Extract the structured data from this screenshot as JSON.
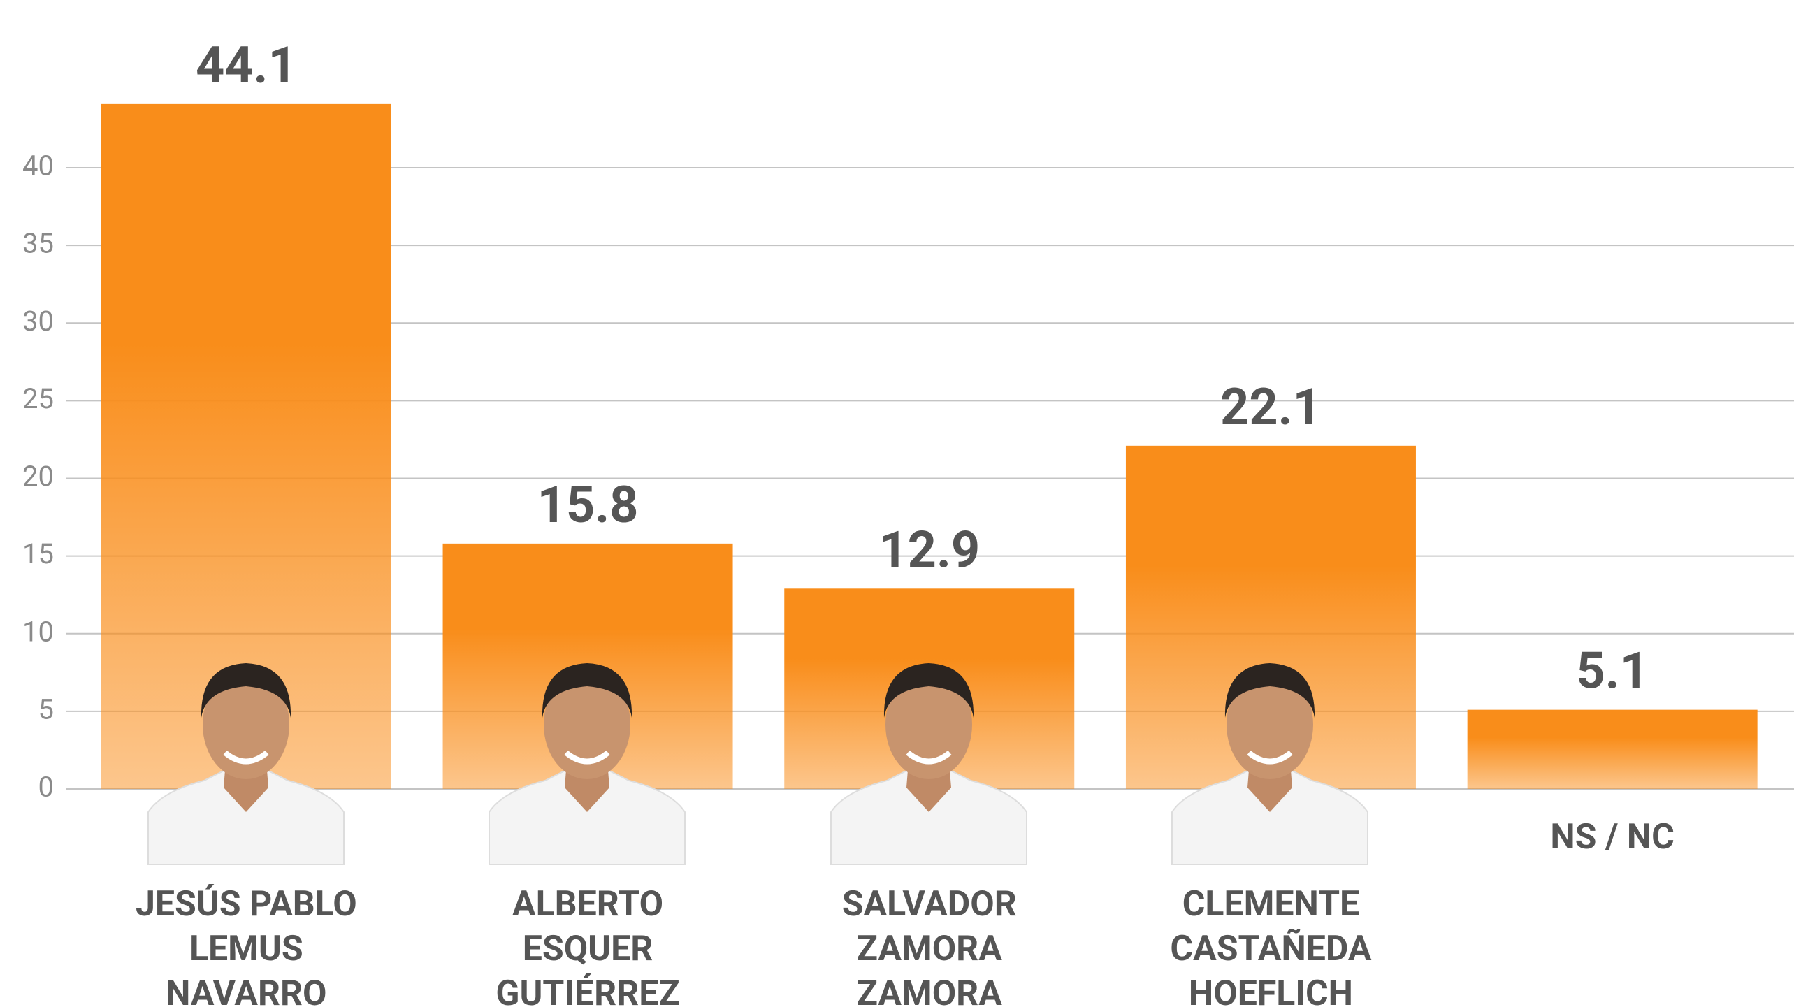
{
  "chart_data": {
    "type": "bar",
    "categories": [
      "JESÚS PABLO\nLEMUS\nNAVARRO",
      "ALBERTO\nESQUER\nGUTIÉRREZ",
      "SALVADOR\nZAMORA\nZAMORA",
      "CLEMENTE\nCASTAÑEDA\nHOEFLICH",
      "NS / NC"
    ],
    "values": [
      44.1,
      15.8,
      12.9,
      22.1,
      5.1
    ],
    "color": "#f98d1a",
    "ylim": [
      0,
      47
    ],
    "yticks": [
      0,
      5,
      10,
      15,
      20,
      25,
      30,
      35,
      40
    ],
    "grid": true
  }
}
